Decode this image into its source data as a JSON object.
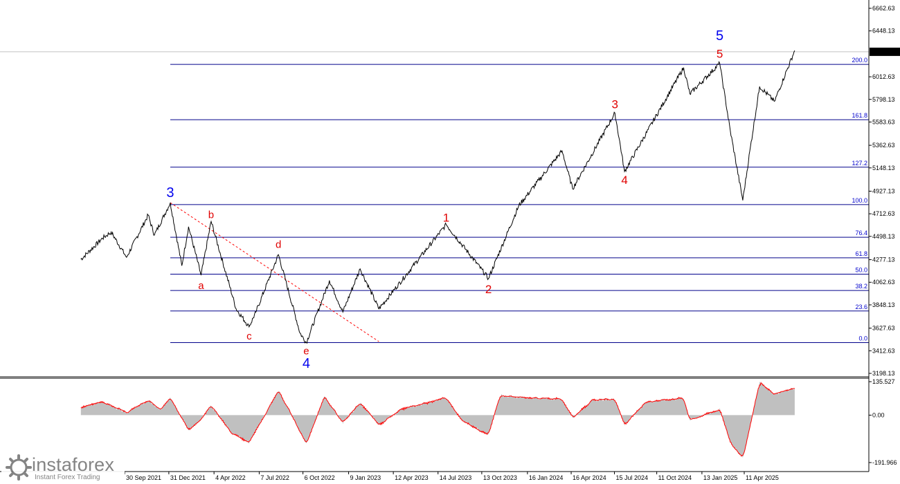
{
  "chart_data": [
    {
      "type": "line",
      "panel": "price",
      "current_price": "6249.91",
      "y_ticks": [
        "6662.63",
        "6448.13",
        "6012.63",
        "5798.13",
        "5583.63",
        "5362.63",
        "5148.13",
        "4927.13",
        "4712.63",
        "4498.13",
        "4277.13",
        "4062.63",
        "3848.13",
        "3627.63",
        "3412.63",
        "3198.13"
      ],
      "ylim": [
        3198.13,
        6662.63
      ],
      "x_ticks": [
        "30 Sep 2021",
        "31 Dec 2021",
        "4 Apr 2022",
        "7 Jul 2022",
        "6 Oct 2022",
        "9 Jan 2023",
        "12 Apr 2023",
        "14 Jul 2023",
        "13 Oct 2023",
        "16 Jan 2024",
        "16 Apr 2024",
        "15 Jul 2024",
        "11 Oct 2024",
        "13 Jan 2025",
        "11 Apr 2025"
      ],
      "fib_levels": [
        {
          "label": "200.0",
          "price": 6130
        },
        {
          "label": "161.8",
          "price": 5605
        },
        {
          "label": "127.2",
          "price": 5155
        },
        {
          "label": "100.0",
          "price": 4800
        },
        {
          "label": "76.4",
          "price": 4490
        },
        {
          "label": "61.8",
          "price": 4295
        },
        {
          "label": "50.0",
          "price": 4140
        },
        {
          "label": "38.2",
          "price": 3985
        },
        {
          "label": "23.6",
          "price": 3790
        },
        {
          "label": "0.0",
          "price": 3490
        }
      ],
      "wave_labels": [
        {
          "text": "3",
          "color": "blue",
          "date": "2022-01-03",
          "price": 4870
        },
        {
          "text": "a",
          "color": "red",
          "date": "2022-03-08",
          "price": 4000
        },
        {
          "text": "b",
          "color": "red",
          "date": "2022-03-29",
          "price": 4670
        },
        {
          "text": "c",
          "color": "red",
          "date": "2022-06-16",
          "price": 3520
        },
        {
          "text": "d",
          "color": "red",
          "date": "2022-08-16",
          "price": 4390
        },
        {
          "text": "e",
          "color": "red",
          "date": "2022-10-13",
          "price": 3380
        },
        {
          "text": "4",
          "color": "blue",
          "date": "2022-10-13",
          "price": 3250
        },
        {
          "text": "1",
          "color": "red",
          "date": "2023-07-31",
          "price": 4640
        },
        {
          "text": "2",
          "color": "red",
          "date": "2023-10-27",
          "price": 3960
        },
        {
          "text": "3",
          "color": "red",
          "date": "2024-07-16",
          "price": 5715
        },
        {
          "text": "4",
          "color": "red",
          "date": "2024-08-05",
          "price": 4995
        },
        {
          "text": "5",
          "color": "red",
          "date": "2025-02-19",
          "price": 6195
        },
        {
          "text": "5",
          "color": "blue",
          "date": "2025-02-19",
          "price": 6360
        }
      ],
      "price_series": {
        "dates": [
          "2021-07-01",
          "2021-08-15",
          "2021-09-02",
          "2021-10-04",
          "2021-11-18",
          "2021-12-01",
          "2022-01-03",
          "2022-01-27",
          "2022-02-10",
          "2022-03-08",
          "2022-03-29",
          "2022-05-20",
          "2022-06-16",
          "2022-06-30",
          "2022-08-16",
          "2022-09-30",
          "2022-10-13",
          "2022-11-30",
          "2022-12-28",
          "2023-02-02",
          "2023-03-13",
          "2023-07-31",
          "2023-10-27",
          "2023-12-29",
          "2024-03-28",
          "2024-04-19",
          "2024-07-16",
          "2024-08-05",
          "2024-12-06",
          "2024-12-19",
          "2025-02-19",
          "2025-03-13",
          "2025-04-08",
          "2025-04-24",
          "2025-05-13",
          "2025-06-13",
          "2025-07-25"
        ],
        "prices": [
          4280,
          4480,
          4540,
          4300,
          4700,
          4510,
          4818,
          4220,
          4590,
          4130,
          4640,
          3810,
          3640,
          3780,
          4325,
          3580,
          3490,
          4080,
          3780,
          4190,
          3810,
          4610,
          4100,
          4790,
          5310,
          4950,
          5670,
          5115,
          6100,
          5850,
          6140,
          5500,
          4840,
          5350,
          5920,
          5780,
          6262
        ]
      },
      "trend_line": {
        "from": {
          "date": "2022-01-03",
          "price": 4818
        },
        "to": {
          "date": "2023-03-13",
          "price": 3500
        }
      }
    },
    {
      "type": "area",
      "panel": "oscillator",
      "y_ticks": [
        "135.527",
        "0.00",
        "-191.966"
      ],
      "ylim": [
        -191.966,
        135.527
      ],
      "series": [
        {
          "dates": [
            "2021-07-01",
            "2021-08-15",
            "2021-10-04",
            "2021-11-18",
            "2021-12-15",
            "2022-01-03",
            "2022-02-10",
            "2022-03-08",
            "2022-03-29",
            "2022-05-10",
            "2022-06-16",
            "2022-07-10",
            "2022-08-16",
            "2022-09-15",
            "2022-10-13",
            "2022-11-20",
            "2022-12-28",
            "2023-02-02",
            "2023-03-13",
            "2023-05-01",
            "2023-07-31",
            "2023-09-01",
            "2023-10-27",
            "2023-11-20",
            "2024-01-10",
            "2024-03-28",
            "2024-04-19",
            "2024-05-30",
            "2024-07-16",
            "2024-08-05",
            "2024-09-20",
            "2024-12-06",
            "2024-12-19",
            "2025-02-19",
            "2025-03-13",
            "2025-04-08",
            "2025-05-13",
            "2025-06-13",
            "2025-07-25"
          ],
          "values": [
            30,
            55,
            10,
            60,
            20,
            75,
            -60,
            -20,
            40,
            -70,
            -110,
            -30,
            100,
            -10,
            -115,
            75,
            -30,
            50,
            -40,
            25,
            70,
            -20,
            -80,
            80,
            70,
            65,
            -10,
            60,
            65,
            -40,
            55,
            70,
            -20,
            25,
            -110,
            -175,
            130,
            85,
            110
          ]
        }
      ]
    }
  ],
  "colors": {
    "price_line": "#000000",
    "fib_line": "#00008b",
    "fib_label": "#0000cc",
    "wave_red": "#e00000",
    "wave_blue": "#0000ee",
    "trend_line": "#ff0000",
    "osc_fill": "#c0c0c0",
    "osc_line": "#ff0000",
    "price_box": "#000000"
  },
  "logo": {
    "name": "instaforex",
    "subtitle": "Instant Forex Trading",
    "icon": "instaforex-logo-icon"
  }
}
